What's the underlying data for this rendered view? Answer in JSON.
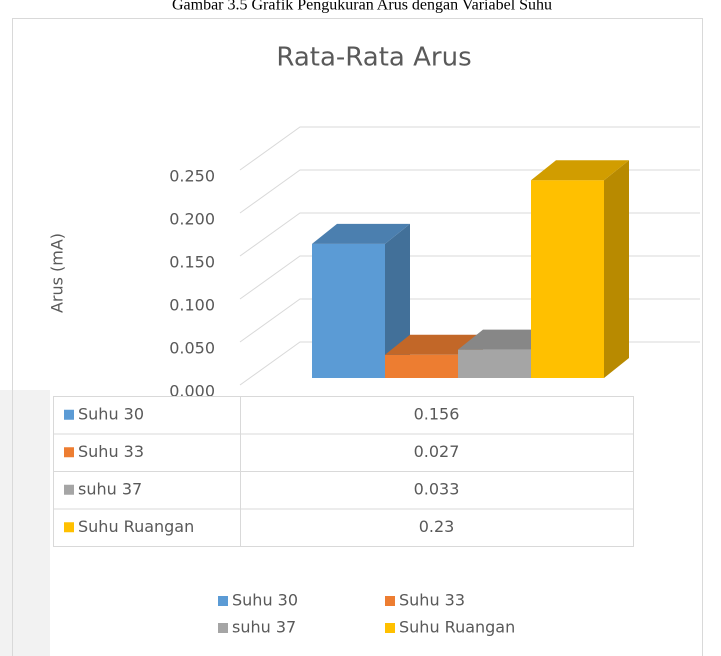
{
  "caption": "Gambar 3.5 Grafik Pengukuran Arus dengan Variabel Suhu",
  "chart_data": {
    "type": "bar3d",
    "title": "Rata-Rata Arus",
    "y_label": "Arus (mA)",
    "series": [
      {
        "name": "Suhu 30",
        "color": "#5b9bd5",
        "values": [
          0.156
        ]
      },
      {
        "name": "Suhu 33",
        "color": "#ed7d31",
        "values": [
          0.027
        ]
      },
      {
        "name": "suhu 37",
        "color": "#a5a5a5",
        "values": [
          0.033
        ]
      },
      {
        "name": "Suhu Ruangan",
        "color": "#ffc000",
        "values": [
          0.23
        ]
      }
    ],
    "ylim": [
      0,
      0.25
    ],
    "yticks": [
      {
        "value": 0,
        "label": "0.000"
      },
      {
        "value": 0.05,
        "label": "0.050"
      },
      {
        "value": 0.1,
        "label": "0.100"
      },
      {
        "value": 0.15,
        "label": "0.150"
      },
      {
        "value": 0.2,
        "label": "0.200"
      },
      {
        "value": 0.25,
        "label": "0.250"
      }
    ],
    "grid": true
  }
}
